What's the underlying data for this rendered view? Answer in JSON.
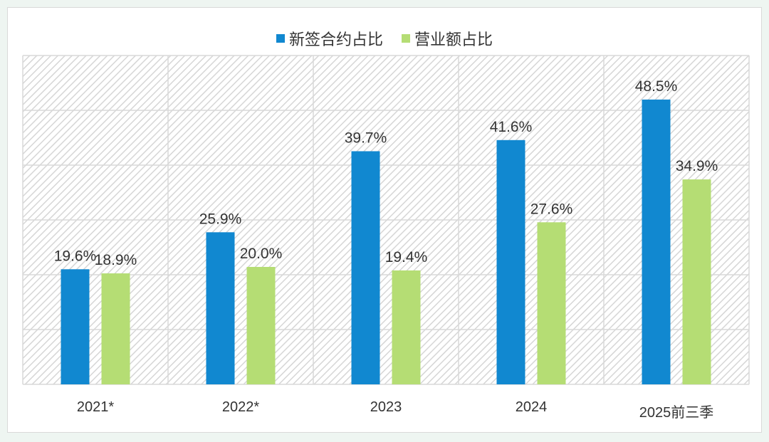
{
  "chart_data": {
    "type": "bar",
    "categories": [
      "2021*",
      "2022*",
      "2023",
      "2024",
      "2025前三季"
    ],
    "series": [
      {
        "name": "新签合约占比",
        "values": [
          19.6,
          25.9,
          39.7,
          41.6,
          48.5
        ],
        "labels": [
          "19.6%",
          "25.9%",
          "39.7%",
          "41.6%",
          "48.5%"
        ],
        "color": "#1188d0"
      },
      {
        "name": "营业额占比",
        "values": [
          18.9,
          20.0,
          19.4,
          27.6,
          34.9
        ],
        "labels": [
          "18.9%",
          "20.0%",
          "19.4%",
          "27.6%",
          "34.9%"
        ],
        "color": "#b5dd74"
      }
    ],
    "ylim": [
      0,
      56
    ],
    "grid": true,
    "legend": "top-center",
    "title": "",
    "xlabel": "",
    "ylabel": ""
  }
}
